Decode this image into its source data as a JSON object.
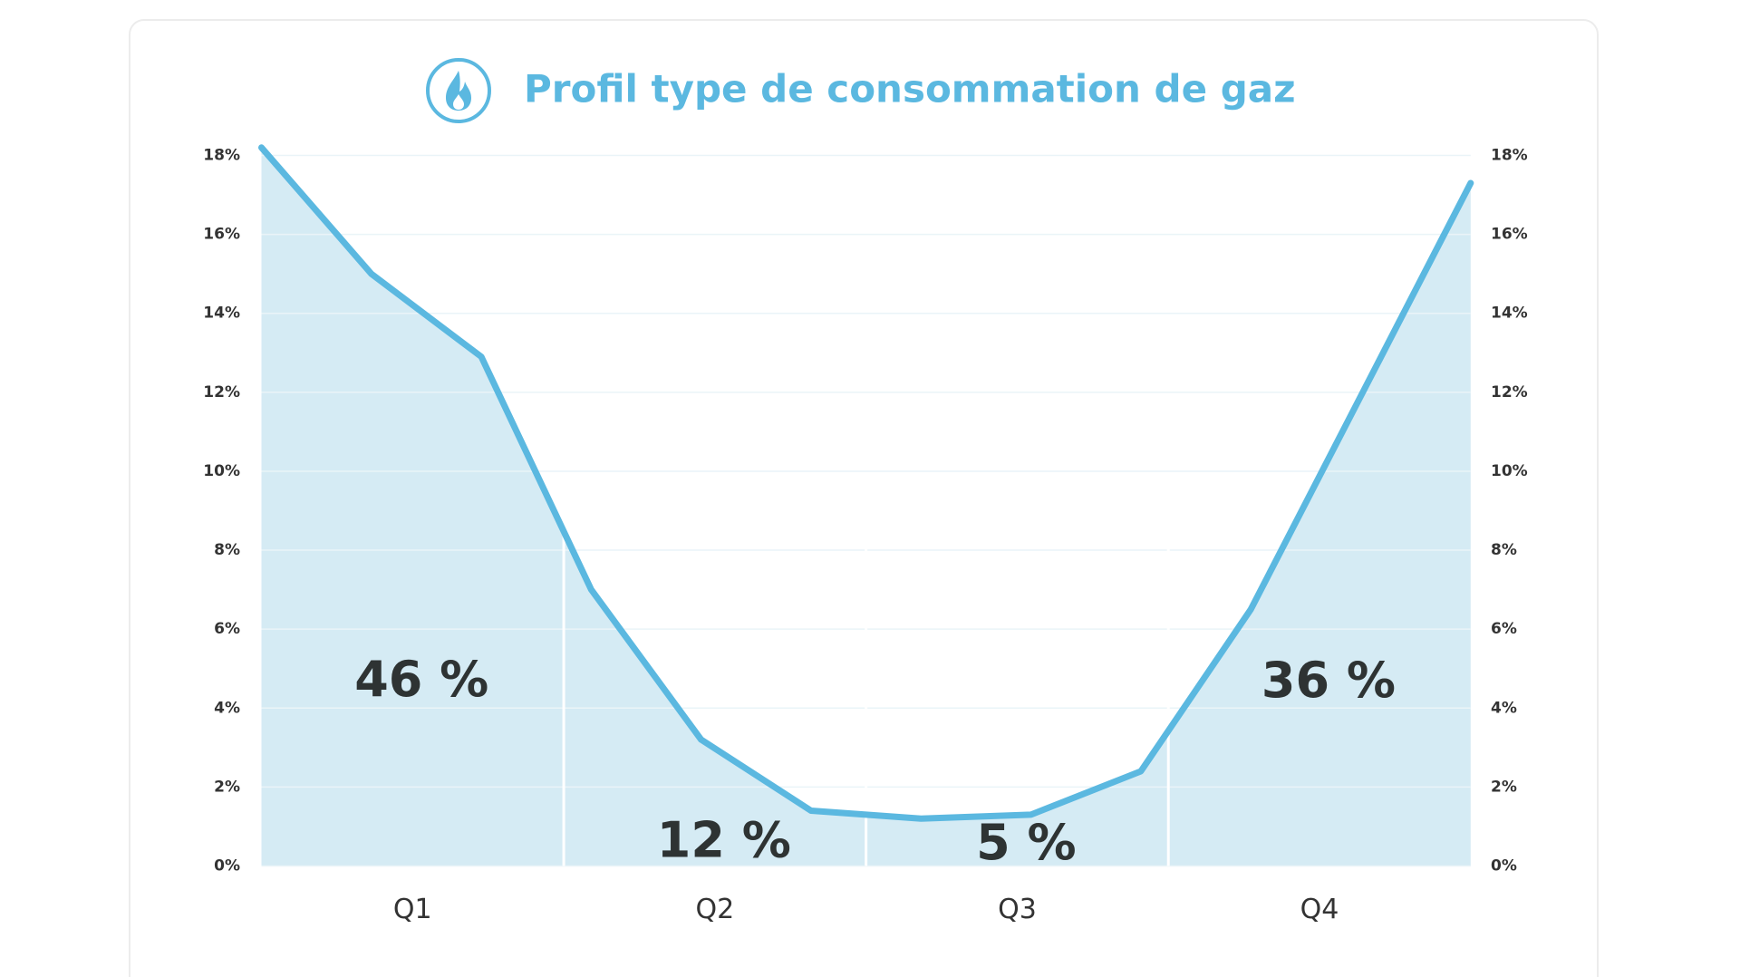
{
  "chart_data": {
    "type": "line",
    "title": "Profil type de consommation de gaz",
    "categories": [
      null,
      null,
      null,
      null,
      null,
      null,
      null,
      null,
      null,
      null,
      null,
      null
    ],
    "values": [
      18.2,
      15.0,
      12.9,
      7.0,
      3.2,
      1.4,
      1.2,
      1.3,
      2.4,
      6.5,
      11.9,
      17.3
    ],
    "color": "#5bb8e0",
    "fill_color": "#d5ebf4",
    "ylim": [
      0,
      18
    ],
    "yticks": [
      {
        "value": 0,
        "label": "0%"
      },
      {
        "value": 2,
        "label": "2%"
      },
      {
        "value": 4,
        "label": "4%"
      },
      {
        "value": 6,
        "label": "6%"
      },
      {
        "value": 8,
        "label": "8%"
      },
      {
        "value": 10,
        "label": "10%"
      },
      {
        "value": 12,
        "label": "12%"
      },
      {
        "value": 14,
        "label": "14%"
      },
      {
        "value": 16,
        "label": "16%"
      },
      {
        "value": 18,
        "label": "18%"
      }
    ],
    "y2lim": [
      0,
      18
    ],
    "y2ticks": [
      {
        "value": 0,
        "label": "0%"
      },
      {
        "value": 2,
        "label": "2%"
      },
      {
        "value": 4,
        "label": "4%"
      },
      {
        "value": 6,
        "label": "6%"
      },
      {
        "value": 8,
        "label": "8%"
      },
      {
        "value": 10,
        "label": "10%"
      },
      {
        "value": 12,
        "label": "12%"
      },
      {
        "value": 14,
        "label": "14%"
      },
      {
        "value": 16,
        "label": "16%"
      },
      {
        "value": 18,
        "label": "18%"
      }
    ],
    "grid": true,
    "quarters": [
      "Q1",
      "Q2",
      "Q3",
      "Q4"
    ],
    "quarter_shares": [
      46,
      12,
      5,
      36
    ],
    "quarter_share_labels": [
      "46 %",
      "12 %",
      "5 %",
      "36 %"
    ]
  }
}
